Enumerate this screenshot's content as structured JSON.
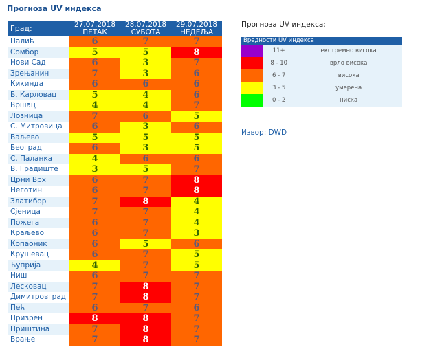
{
  "title": "Прогноза UV индекса",
  "table": {
    "city_header": "Град:",
    "days": [
      {
        "date": "27.07.2018",
        "day": "ПЕТАК"
      },
      {
        "date": "28.07.2018",
        "day": "СУБОТА"
      },
      {
        "date": "29.07.2018",
        "day": "НЕДЕЉА"
      }
    ],
    "rows": [
      {
        "city": "Палић",
        "values": [
          6,
          7,
          7
        ]
      },
      {
        "city": "Сомбор",
        "values": [
          5,
          5,
          8
        ]
      },
      {
        "city": "Нови Сад",
        "values": [
          6,
          3,
          7
        ]
      },
      {
        "city": "Зрењанин",
        "values": [
          7,
          3,
          6
        ]
      },
      {
        "city": "Кикинда",
        "values": [
          6,
          6,
          6
        ]
      },
      {
        "city": "Б. Карловац",
        "values": [
          5,
          4,
          6
        ]
      },
      {
        "city": "Вршац",
        "values": [
          4,
          4,
          7
        ]
      },
      {
        "city": "Лозница",
        "values": [
          7,
          6,
          5
        ]
      },
      {
        "city": "С. Митровица",
        "values": [
          6,
          3,
          6
        ]
      },
      {
        "city": "Ваљево",
        "values": [
          5,
          5,
          5
        ]
      },
      {
        "city": "Београд",
        "values": [
          6,
          3,
          5
        ]
      },
      {
        "city": "С. Паланка",
        "values": [
          4,
          6,
          6
        ]
      },
      {
        "city": "В. Градиште",
        "values": [
          3,
          5,
          7
        ]
      },
      {
        "city": "Црни Врх",
        "values": [
          6,
          7,
          8
        ]
      },
      {
        "city": "Неготин",
        "values": [
          6,
          7,
          8
        ]
      },
      {
        "city": "Златибор",
        "values": [
          7,
          8,
          4
        ]
      },
      {
        "city": "Сјеница",
        "values": [
          7,
          7,
          4
        ]
      },
      {
        "city": "Пожега",
        "values": [
          6,
          7,
          4
        ]
      },
      {
        "city": "Краљево",
        "values": [
          6,
          7,
          3
        ]
      },
      {
        "city": "Копаоник",
        "values": [
          6,
          5,
          6
        ]
      },
      {
        "city": "Крушевац",
        "values": [
          6,
          7,
          5
        ]
      },
      {
        "city": "Ћуприја",
        "values": [
          4,
          7,
          5
        ]
      },
      {
        "city": "Ниш",
        "values": [
          6,
          7,
          7
        ]
      },
      {
        "city": "Лесковац",
        "values": [
          7,
          8,
          7
        ]
      },
      {
        "city": "Димитровград",
        "values": [
          7,
          8,
          7
        ]
      },
      {
        "city": "Пећ",
        "values": [
          6,
          7,
          6
        ]
      },
      {
        "city": "Призрен",
        "values": [
          8,
          8,
          7
        ]
      },
      {
        "city": "Приштина",
        "values": [
          7,
          8,
          7
        ]
      },
      {
        "city": "Врање",
        "values": [
          7,
          8,
          7
        ]
      }
    ]
  },
  "legend": {
    "title": "Прогноза UV индекса:",
    "header": "Вредности UV индекса",
    "items": [
      {
        "range": "11+",
        "label": "екстремно висока",
        "color": "#9900cc"
      },
      {
        "range": "8 - 10",
        "label": "врло висока",
        "color": "#ff0000"
      },
      {
        "range": "6 - 7",
        "label": "висока",
        "color": "#ff6600"
      },
      {
        "range": "3 - 5",
        "label": "умерена",
        "color": "#ffff00"
      },
      {
        "range": "0 - 2",
        "label": "ниска",
        "color": "#00ff00"
      }
    ]
  },
  "source": "Извор: DWD"
}
